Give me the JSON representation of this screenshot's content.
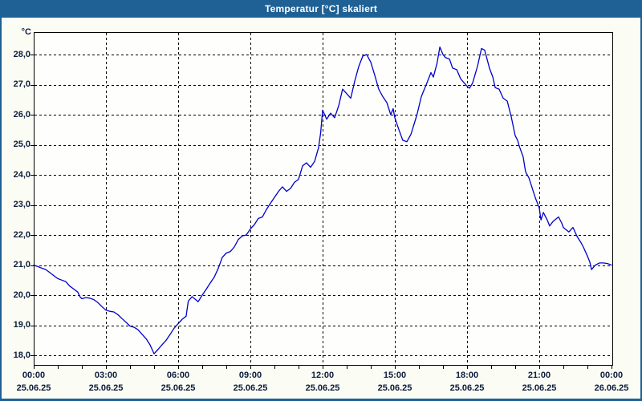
{
  "window": {
    "title": "Temperatur [°C] skaliert"
  },
  "colors": {
    "titlebar": "#1F6195",
    "window_border": "#1F6195",
    "plot_border": "#000000",
    "grid": "#000000",
    "line": "#0000CD",
    "label_text": "#0C1C3C",
    "plot_bg": "#FEFEFC",
    "page_bg": "#FBFCF4"
  },
  "chart_data": {
    "type": "line",
    "title": "Temperatur [°C] skaliert",
    "unit_label": "°C",
    "grid": true,
    "legend": "none",
    "ylim": [
      17.68,
      28.75
    ],
    "xlim_hours": [
      0,
      24
    ],
    "y_ticks": [
      "28,0",
      "27,0",
      "26,0",
      "25,0",
      "24,0",
      "23,0",
      "22,0",
      "21,0",
      "20,0",
      "19,0",
      "18,0"
    ],
    "y_tick_values": [
      28,
      27,
      26,
      25,
      24,
      23,
      22,
      21,
      20,
      19,
      18
    ],
    "x_tick_hours": [
      0,
      3,
      6,
      9,
      12,
      15,
      18,
      21,
      24
    ],
    "x_ticks": [
      {
        "time": "00:00",
        "date": "25.06.25"
      },
      {
        "time": "03:00",
        "date": "25.06.25"
      },
      {
        "time": "06:00",
        "date": "25.06.25"
      },
      {
        "time": "09:00",
        "date": "25.06.25"
      },
      {
        "time": "12:00",
        "date": "25.06.25"
      },
      {
        "time": "15:00",
        "date": "25.06.25"
      },
      {
        "time": "18:00",
        "date": "25.06.25"
      },
      {
        "time": "21:00",
        "date": "25.06.25"
      },
      {
        "time": "00:00",
        "date": "26.06.25"
      }
    ],
    "minor_x_tick_every_hours": 1,
    "major_x_grid_every_hours": 3,
    "series": [
      {
        "name": "Temperatur",
        "x_hours": [
          0,
          0.17,
          0.33,
          0.5,
          0.67,
          0.83,
          1,
          1.17,
          1.33,
          1.5,
          1.67,
          1.83,
          1.92,
          2,
          2.17,
          2.33,
          2.5,
          2.67,
          2.83,
          3,
          3.17,
          3.33,
          3.5,
          3.67,
          3.83,
          4,
          4.17,
          4.33,
          4.5,
          4.67,
          4.83,
          5,
          5.17,
          5.33,
          5.5,
          5.67,
          5.83,
          6,
          6.17,
          6.33,
          6.42,
          6.58,
          6.83,
          7,
          7.17,
          7.33,
          7.5,
          7.67,
          7.83,
          8,
          8.17,
          8.33,
          8.5,
          8.67,
          8.83,
          9,
          9.17,
          9.33,
          9.5,
          9.67,
          9.83,
          10,
          10.17,
          10.33,
          10.5,
          10.67,
          10.83,
          11,
          11.17,
          11.33,
          11.5,
          11.67,
          11.83,
          11.92,
          12,
          12.17,
          12.33,
          12.5,
          12.67,
          12.83,
          13,
          13.17,
          13.33,
          13.5,
          13.67,
          13.83,
          14,
          14.17,
          14.33,
          14.5,
          14.67,
          14.83,
          14.93,
          15,
          15.17,
          15.33,
          15.5,
          15.67,
          15.92,
          16.1,
          16.33,
          16.5,
          16.6,
          16.75,
          16.87,
          17,
          17.1,
          17.27,
          17.4,
          17.57,
          17.73,
          17.83,
          18,
          18.1,
          18.23,
          18.43,
          18.6,
          18.73,
          18.83,
          18.93,
          19.07,
          19.17,
          19.33,
          19.5,
          19.67,
          19.83,
          20,
          20.1,
          20.17,
          20.33,
          20.43,
          20.57,
          20.83,
          21,
          21.07,
          21.17,
          21.33,
          21.43,
          21.57,
          21.8,
          21.93,
          22,
          22.23,
          22.4,
          22.57,
          22.73,
          22.83,
          23,
          23.1,
          23.17,
          23.33,
          23.5,
          23.67,
          23.83,
          24
        ],
        "values": [
          21,
          20.95,
          20.9,
          20.85,
          20.75,
          20.65,
          20.55,
          20.5,
          20.45,
          20.3,
          20.2,
          20.1,
          19.95,
          19.88,
          19.92,
          19.9,
          19.85,
          19.75,
          19.62,
          19.5,
          19.46,
          19.44,
          19.35,
          19.22,
          19.1,
          18.97,
          18.93,
          18.85,
          18.7,
          18.55,
          18.35,
          18.05,
          18.2,
          18.35,
          18.5,
          18.7,
          18.9,
          19.05,
          19.2,
          19.3,
          19.8,
          19.95,
          19.78,
          20,
          20.2,
          20.4,
          20.6,
          20.9,
          21.25,
          21.4,
          21.45,
          21.6,
          21.85,
          21.97,
          22,
          22.2,
          22.35,
          22.55,
          22.6,
          22.85,
          23.05,
          23.25,
          23.45,
          23.6,
          23.45,
          23.55,
          23.75,
          23.85,
          24.3,
          24.4,
          24.25,
          24.45,
          24.9,
          25.4,
          26.15,
          25.85,
          26.05,
          25.9,
          26.3,
          26.85,
          26.7,
          26.55,
          27.1,
          27.6,
          27.95,
          28,
          27.75,
          27.3,
          26.85,
          26.6,
          26.4,
          26,
          26.2,
          25.9,
          25.5,
          25.15,
          25.1,
          25.35,
          26,
          26.6,
          27.05,
          27.4,
          27.25,
          27.7,
          28.25,
          28,
          27.9,
          27.85,
          27.55,
          27.5,
          27.2,
          27.1,
          26.95,
          26.88,
          27.05,
          27.6,
          28.2,
          28.15,
          27.85,
          27.55,
          27.25,
          26.9,
          26.85,
          26.55,
          26.45,
          25.95,
          25.3,
          25.15,
          24.95,
          24.6,
          24.1,
          23.9,
          23.25,
          22.9,
          22.5,
          22.75,
          22.5,
          22.3,
          22.45,
          22.6,
          22.4,
          22.25,
          22.1,
          22.25,
          21.95,
          21.75,
          21.6,
          21.3,
          21.1,
          20.85,
          21,
          21.07,
          21.07,
          21.05,
          21
        ]
      }
    ]
  }
}
